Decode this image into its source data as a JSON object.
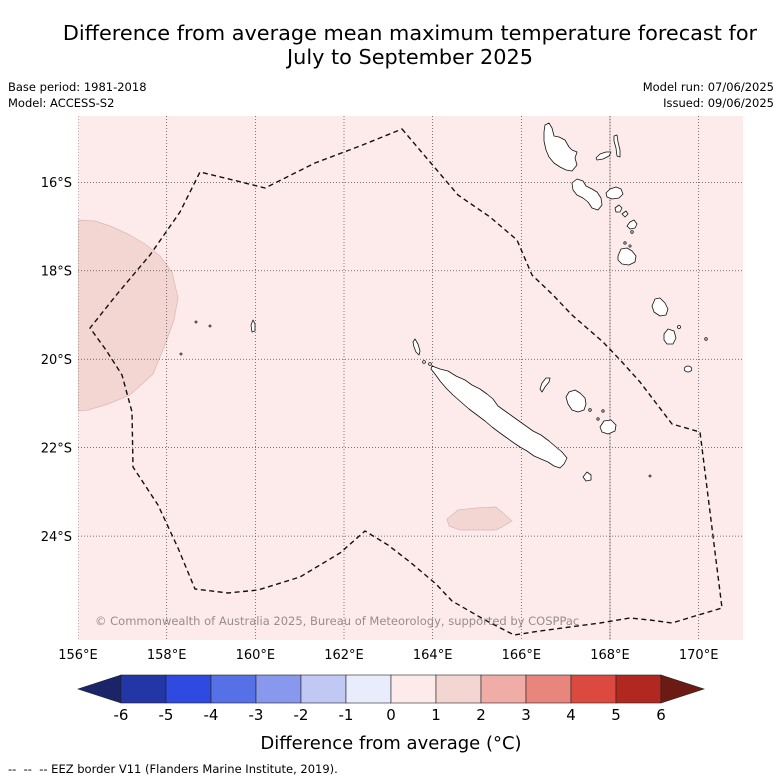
{
  "title": {
    "line1": "Difference from average mean maximum temperature forecast for",
    "line2": "July to September 2025"
  },
  "meta": {
    "base_period": "Base period: 1981-2018",
    "model": "Model: ACCESS-S2",
    "model_run": "Model run: 07/06/2025",
    "issued": "Issued: 09/06/2025"
  },
  "map": {
    "lon_range": [
      156,
      171
    ],
    "lat_range": [
      -14.5,
      -26.35
    ],
    "grid": true,
    "lon_ticks": [
      {
        "value": 156,
        "label": "156°E"
      },
      {
        "value": 158,
        "label": "158°E"
      },
      {
        "value": 160,
        "label": "160°E"
      },
      {
        "value": 162,
        "label": "162°E"
      },
      {
        "value": 164,
        "label": "164°E"
      },
      {
        "value": 166,
        "label": "166°E"
      },
      {
        "value": 168,
        "label": "168°E"
      },
      {
        "value": 170,
        "label": "170°E"
      }
    ],
    "lat_ticks": [
      {
        "value": -16,
        "label": "16°S"
      },
      {
        "value": -18,
        "label": "18°S"
      },
      {
        "value": -20,
        "label": "20°S"
      },
      {
        "value": -22,
        "label": "22°S"
      },
      {
        "value": -24,
        "label": "24°S"
      }
    ],
    "copyright": "© Commonwealth of Australia 2025, Bureau of Meteorology, supported by COSPPac"
  },
  "colorbar": {
    "label": "Difference from average (°C)",
    "extend": "both",
    "levels": [
      -6,
      -5,
      -4,
      -3,
      -2,
      -1,
      0,
      1,
      2,
      3,
      4,
      5,
      6
    ],
    "colors": [
      "#1b2469",
      "#2236a6",
      "#2f4ae0",
      "#5670e6",
      "#8898ec",
      "#c1c8f4",
      "#e9ecfb",
      "#fcebea",
      "#f3d5d2",
      "#f0aca7",
      "#e8857d",
      "#dc4a3f",
      "#b0281f",
      "#6b1a14"
    ]
  },
  "legend": {
    "eez_label": "--  --  -- EEZ border V11 (Flanders Marine Institute, 2019)."
  }
}
